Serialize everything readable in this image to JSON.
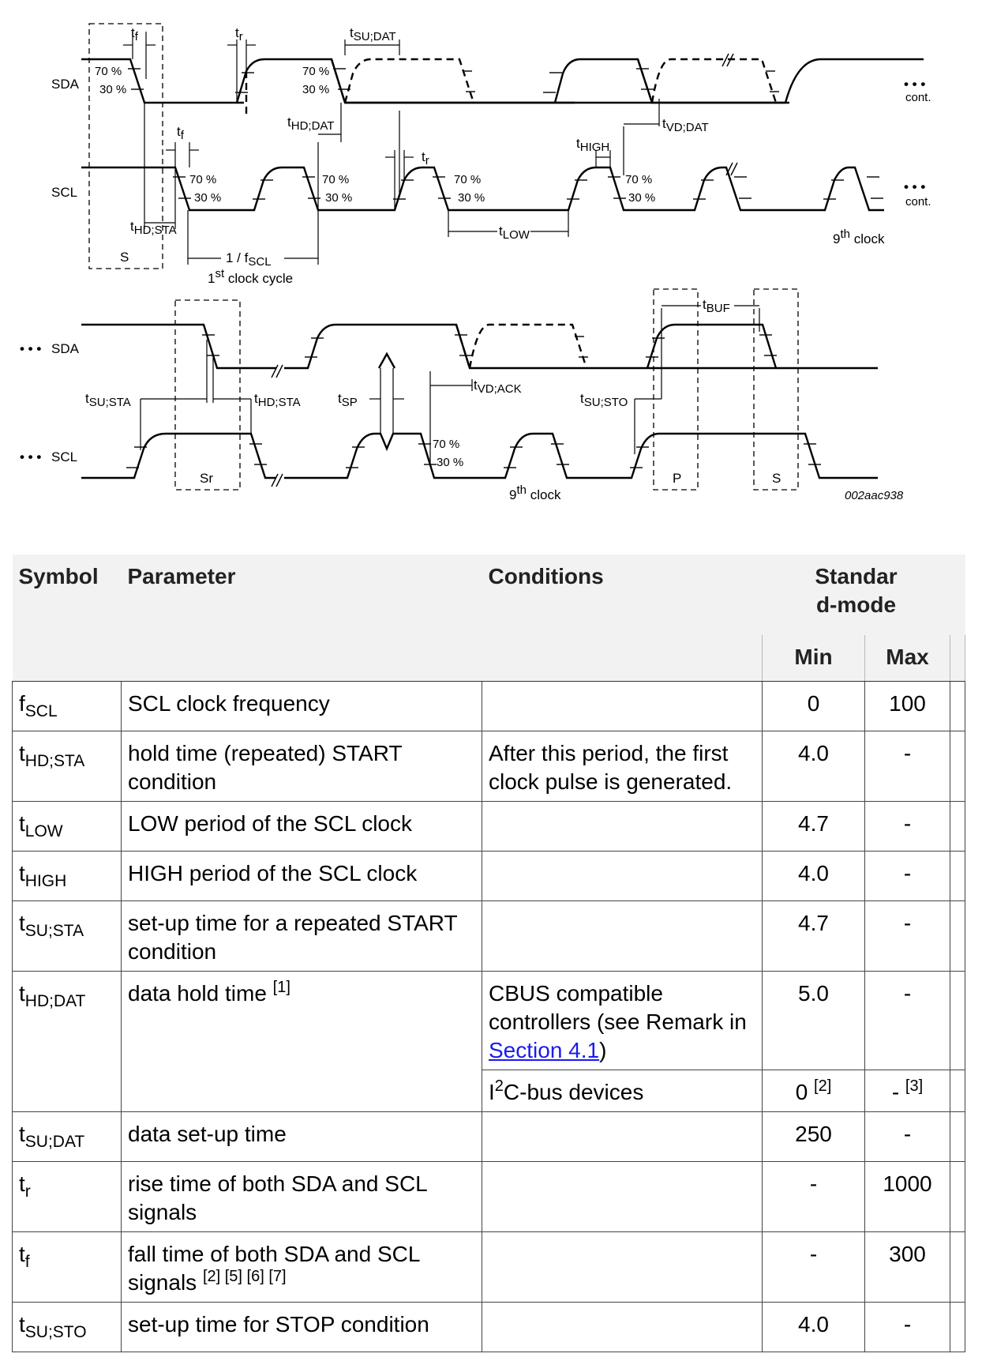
{
  "diagram": {
    "signals": {
      "sda": "SDA",
      "scl": "SCL",
      "sda_cont": "SDA",
      "scl_cont": "SCL",
      "ellipsis": "• • •",
      "cont": "cont."
    },
    "thresholds": {
      "high": "70 %",
      "low": "30 %"
    },
    "timing": {
      "tf_base": "t",
      "tf_sub": "f",
      "tr_base": "t",
      "tr_sub": "r",
      "tsudat_base": "t",
      "tsudat_sub": "SU;DAT",
      "thddat_base": "t",
      "thddat_sub": "HD;DAT",
      "tvddat_base": "t",
      "tvddat_sub": "VD;DAT",
      "thigh_base": "t",
      "thigh_sub": "HIGH",
      "tlow_base": "t",
      "tlow_sub": "LOW",
      "thdsta_base": "t",
      "thdsta_sub": "HD;STA",
      "fscl_prefix": "1 / f",
      "fscl_sub": "SCL",
      "tbuf_base": "t",
      "tbuf_sub": "BUF",
      "tsusta_base": "t",
      "tsusta_sub": "SU;STA",
      "tsp_base": "t",
      "tsp_sub": "SP",
      "tvdack_base": "t",
      "tvdack_sub": "VD;ACK",
      "tsusto_base": "t",
      "tsusto_sub": "SU;STO"
    },
    "conditions": {
      "start": "S",
      "repeated_start": "Sr",
      "stop": "P",
      "start2": "S"
    },
    "first_clock": {
      "num": "1",
      "sup": "st",
      "text": " clock cycle"
    },
    "ninth_clock": {
      "num": "9",
      "sup": "th",
      "text": " clock"
    },
    "figure_id": "002aac938"
  },
  "table": {
    "headers": {
      "symbol": "Symbol",
      "parameter": "Parameter",
      "conditions": "Conditions",
      "mode_line1": "Standar",
      "mode_line2": "d-mode",
      "min": "Min",
      "max": "Max"
    },
    "rows": [
      {
        "sym_base": "f",
        "sym_sub": "SCL",
        "parameter": "SCL clock frequency",
        "conditions": "",
        "min": "0",
        "max": "100"
      },
      {
        "sym_base": "t",
        "sym_sub": "HD;STA",
        "parameter": "hold time (repeated) START condition",
        "conditions": "After this period, the first clock pulse is generated.",
        "min": "4.0",
        "max": "-"
      },
      {
        "sym_base": "t",
        "sym_sub": "LOW",
        "parameter": "LOW period of the SCL clock",
        "conditions": "",
        "min": "4.7",
        "max": "-"
      },
      {
        "sym_base": "t",
        "sym_sub": "HIGH",
        "parameter": "HIGH period of the SCL clock",
        "conditions": "",
        "min": "4.0",
        "max": "-"
      },
      {
        "sym_base": "t",
        "sym_sub": "SU;STA",
        "parameter": "set-up time for a repeated START condition",
        "conditions": "",
        "min": "4.7",
        "max": "-"
      }
    ],
    "hddat": {
      "sym_base": "t",
      "sym_sub": "HD;DAT",
      "parameter": "data hold time ",
      "parameter_note": "[1]",
      "cond1_text": "CBUS compatible controllers (see Remark in ",
      "cond1_link": "Section 4.1",
      "cond1_close": ")",
      "min1": "5.0",
      "max1": "-",
      "cond2_pre": "I",
      "cond2_sup": "2",
      "cond2_text": "C-bus devices",
      "min2": "0 ",
      "min2_note": "[2]",
      "max2": "- ",
      "max2_note": "[3]"
    },
    "rows2": [
      {
        "sym_base": "t",
        "sym_sub": "SU;DAT",
        "parameter": "data set-up time",
        "conditions": "",
        "min": "250",
        "max": "-"
      },
      {
        "sym_base": "t",
        "sym_sub": "r",
        "parameter": "rise time of both SDA and SCL signals",
        "conditions": "",
        "min": "-",
        "max": "1000"
      }
    ],
    "tf_row": {
      "sym_base": "t",
      "sym_sub": "f",
      "parameter": "fall time of both SDA and SCL signals ",
      "notes": "[2] [5] [6] [7]",
      "conditions": "",
      "min": "-",
      "max": "300"
    },
    "tsusto_row": {
      "sym_base": "t",
      "sym_sub": "SU;STO",
      "parameter": "set-up time for STOP condition",
      "conditions": "",
      "min": "4.0",
      "max": "-"
    }
  }
}
